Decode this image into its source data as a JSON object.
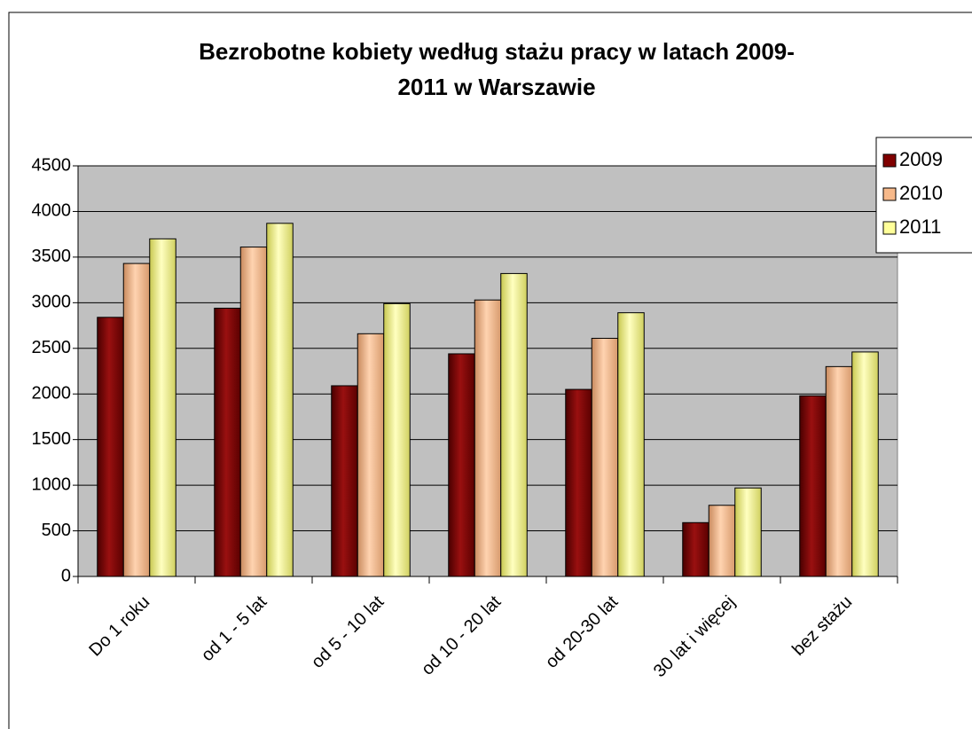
{
  "chart_data": {
    "type": "bar",
    "title": [
      "Bezrobotne kobiety według stażu pracy w latach 2009-",
      "2011 w Warszawie"
    ],
    "categories": [
      "Do 1 roku",
      "od 1 - 5 lat",
      "od 5 - 10 lat",
      "od  10 - 20 lat",
      "od 20-30 lat",
      "30 lat i więcej",
      "bez stażu"
    ],
    "series": [
      {
        "name": "2009",
        "color": "#800000",
        "values": [
          2840,
          2940,
          2090,
          2440,
          2050,
          590,
          1980
        ]
      },
      {
        "name": "2010",
        "color": "#f7b98a",
        "values": [
          3430,
          3610,
          2660,
          3030,
          2610,
          780,
          2300
        ]
      },
      {
        "name": "2011",
        "color": "#ffff99",
        "values": [
          3700,
          3870,
          2990,
          3320,
          2890,
          970,
          2460
        ]
      }
    ],
    "ylim": [
      0,
      4500
    ],
    "yticks": [
      0,
      500,
      1000,
      1500,
      2000,
      2500,
      3000,
      3500,
      4000,
      4500
    ],
    "grid": true,
    "legend": "right"
  }
}
